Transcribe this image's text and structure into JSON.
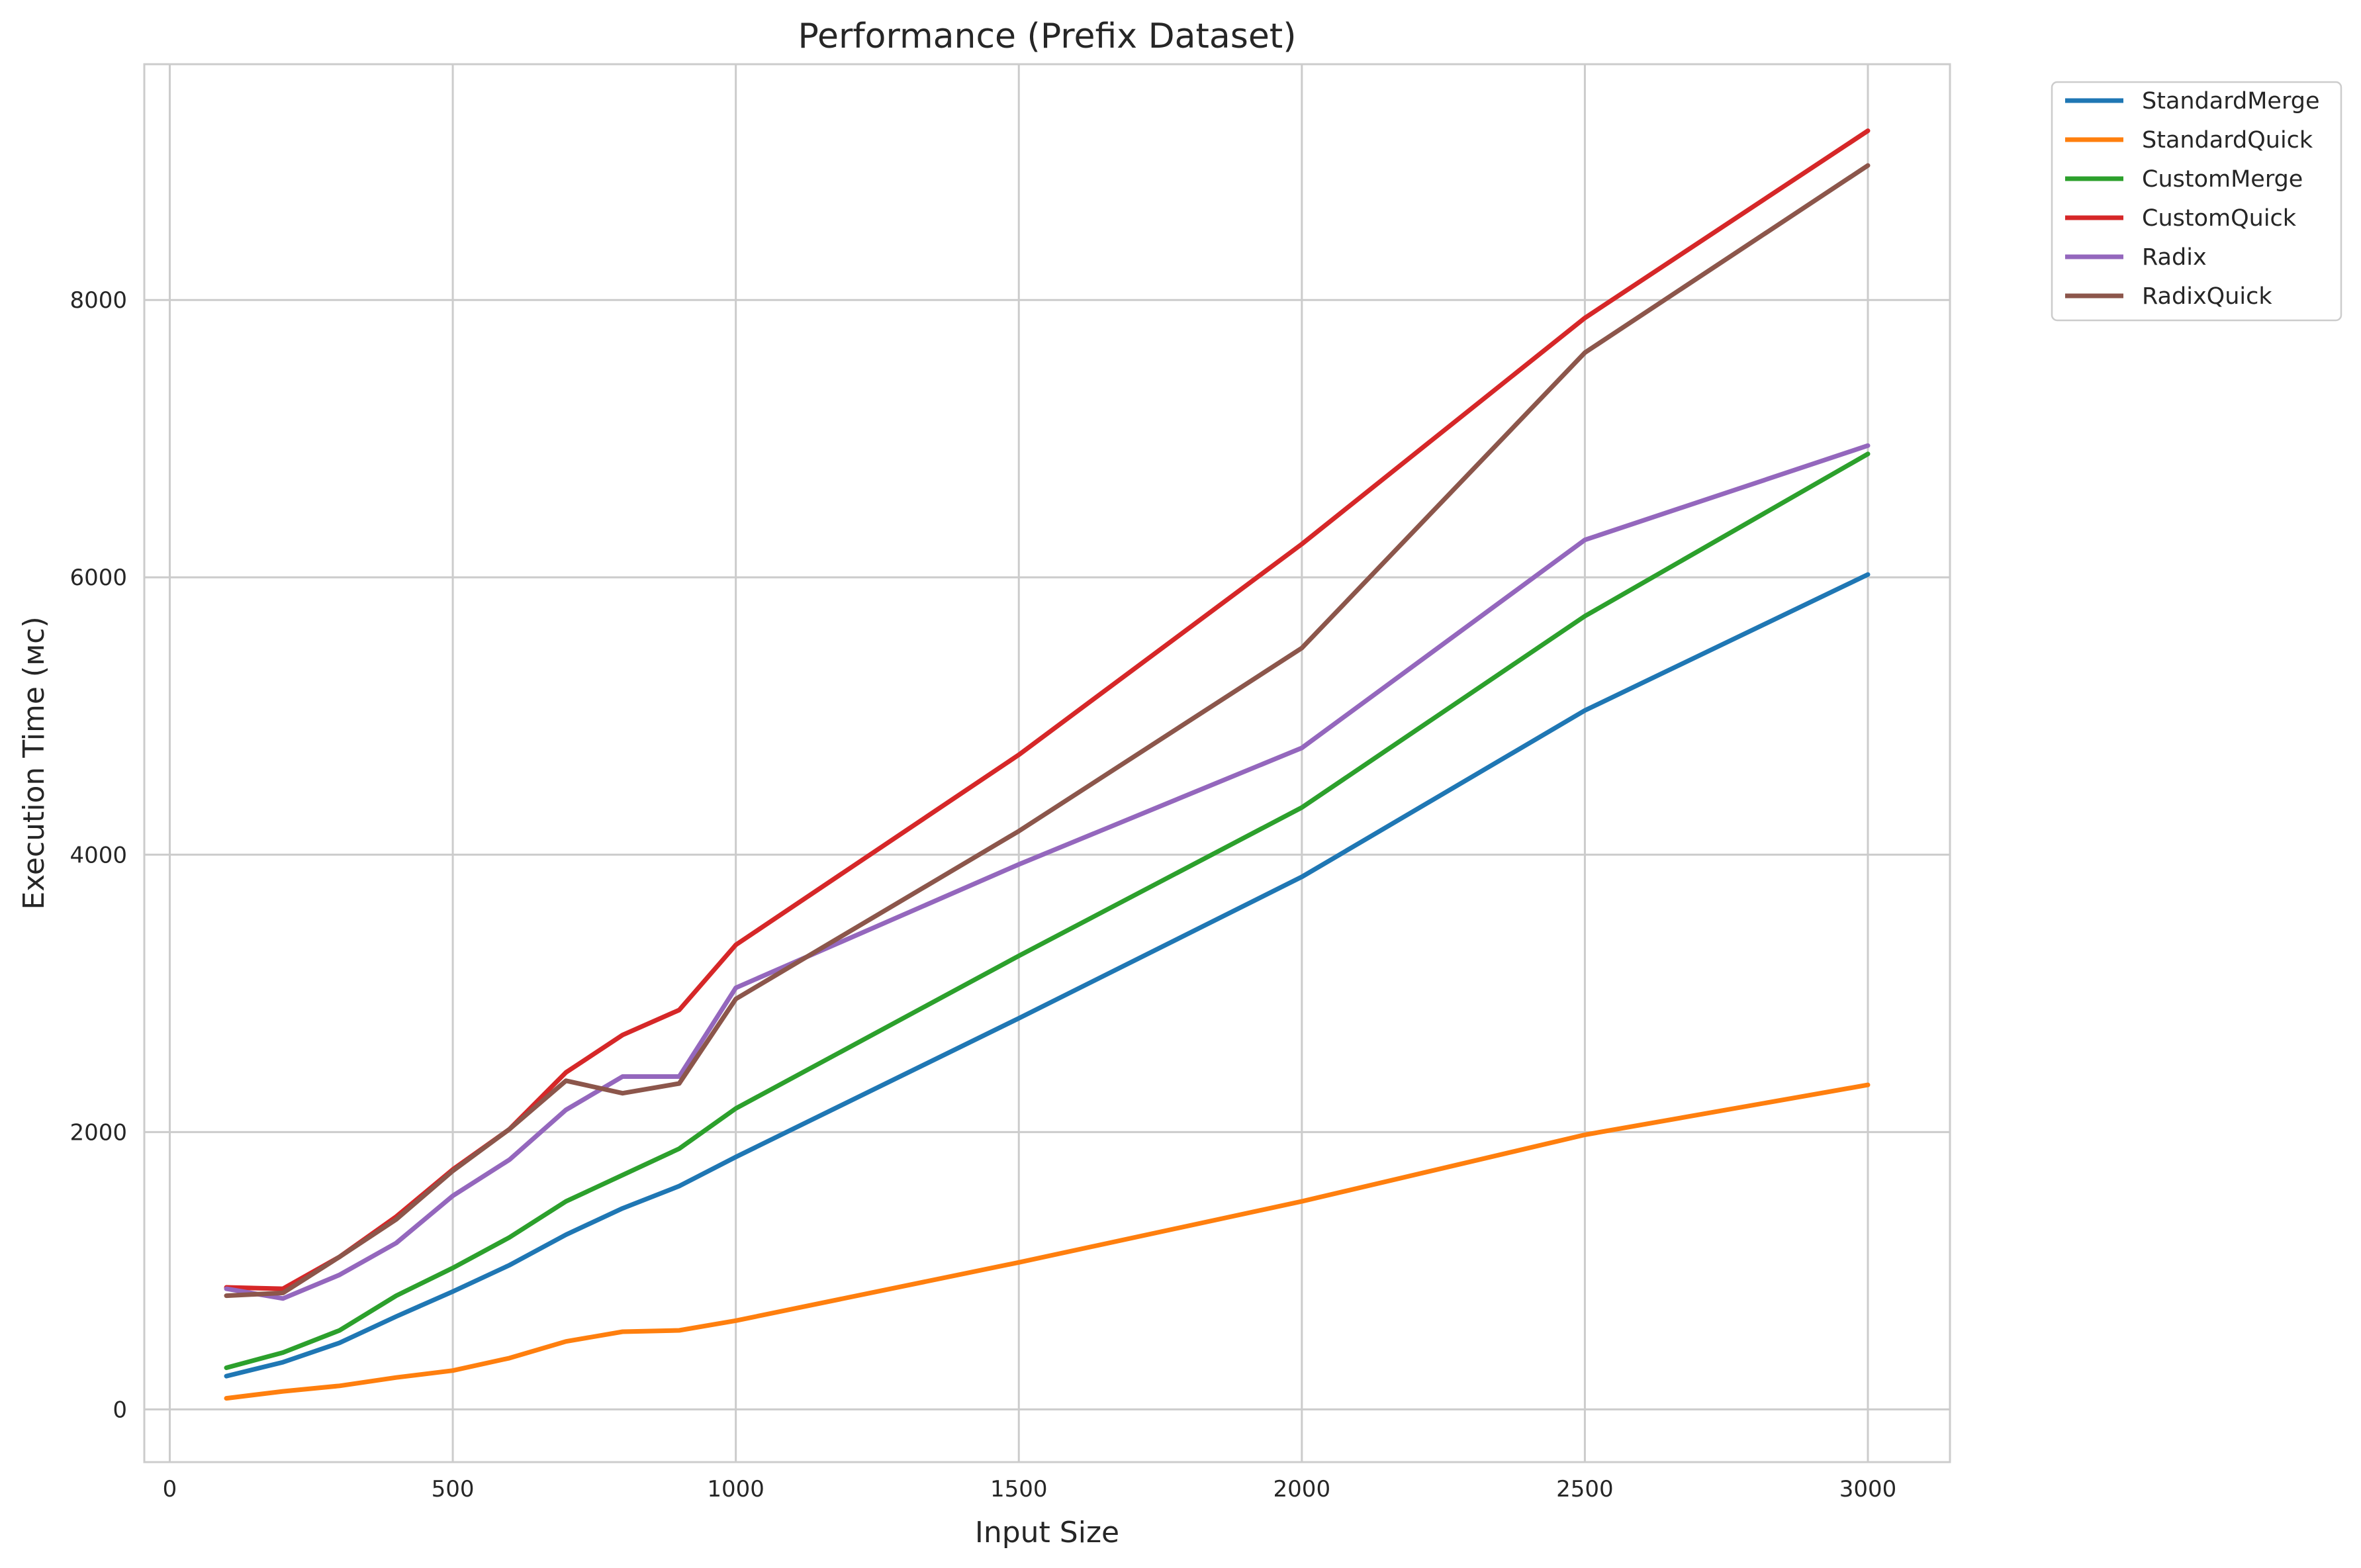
{
  "chart_data": {
    "type": "line",
    "title": "Performance (Prefix Dataset)",
    "xlabel": "Input Size",
    "ylabel": "Execution Time (мс)",
    "xlim": [
      -45,
      3145
    ],
    "ylim": [
      -380,
      9700
    ],
    "xticks": [
      0,
      500,
      1000,
      1500,
      2000,
      2500,
      3000
    ],
    "yticks": [
      0,
      2000,
      4000,
      6000,
      8000
    ],
    "grid": true,
    "legend_placement": "outside-top-right",
    "x": [
      100,
      200,
      300,
      400,
      500,
      600,
      700,
      800,
      900,
      1000,
      1500,
      2000,
      2500,
      3000
    ],
    "series": [
      {
        "name": "StandardMerge",
        "color": "#1f77b4",
        "values": [
          240,
          340,
          480,
          670,
          850,
          1040,
          1260,
          1450,
          1610,
          1820,
          2820,
          3840,
          5040,
          6020
        ]
      },
      {
        "name": "StandardQuick",
        "color": "#ff7f0e",
        "values": [
          80,
          130,
          170,
          230,
          280,
          370,
          490,
          560,
          570,
          640,
          1060,
          1500,
          1980,
          2340
        ]
      },
      {
        "name": "CustomMerge",
        "color": "#2ca02c",
        "values": [
          300,
          410,
          570,
          820,
          1020,
          1240,
          1500,
          1690,
          1880,
          2170,
          3270,
          4340,
          5720,
          6890
        ]
      },
      {
        "name": "CustomQuick",
        "color": "#d62728",
        "values": [
          880,
          870,
          1100,
          1390,
          1730,
          2020,
          2430,
          2700,
          2880,
          3350,
          4720,
          6240,
          7870,
          9220
        ]
      },
      {
        "name": "Radix",
        "color": "#9467bd",
        "values": [
          870,
          800,
          970,
          1200,
          1540,
          1800,
          2160,
          2400,
          2400,
          3040,
          3930,
          4770,
          6270,
          6950
        ]
      },
      {
        "name": "RadixQuick",
        "color": "#8c564b",
        "values": [
          820,
          840,
          1100,
          1370,
          1720,
          2020,
          2370,
          2280,
          2350,
          2960,
          4170,
          5490,
          7620,
          8970
        ]
      }
    ]
  }
}
